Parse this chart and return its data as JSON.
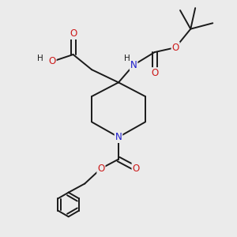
{
  "bg_color": "#ebebeb",
  "bond_color": "#1a1a1a",
  "carbon_color": "#1a1a1a",
  "nitrogen_color": "#1a1acc",
  "oxygen_color": "#cc1a1a",
  "line_width": 1.4,
  "font_size_atom": 8.5,
  "font_size_small": 7.5,
  "xlim": [
    0,
    10
  ],
  "ylim": [
    0,
    10
  ]
}
